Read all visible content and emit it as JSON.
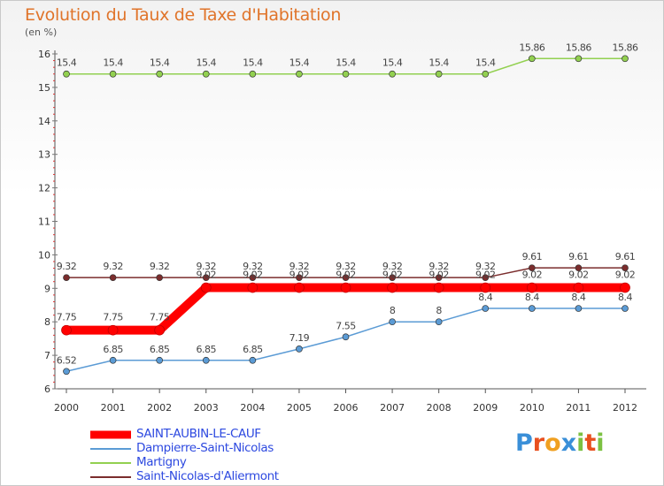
{
  "header": {
    "title": "Evolution du Taux de Taxe d'Habitation",
    "unit": "(en %)"
  },
  "brand": {
    "letters": [
      "P",
      "r",
      "o",
      "x",
      "i",
      "t",
      "i"
    ],
    "colors": [
      "#3a8fd8",
      "#e8501f",
      "#f0a020",
      "#3a8fd8",
      "#7cc142",
      "#e8501f",
      "#7cc142"
    ]
  },
  "chart_data": {
    "type": "line",
    "title": "Evolution du Taux de Taxe d'Habitation",
    "ylabel": "(en %)",
    "xlabel": "",
    "ylim": [
      6,
      16
    ],
    "yticks": [
      "6",
      "7",
      "8",
      "9",
      "10",
      "11",
      "12",
      "13",
      "14",
      "15",
      "16"
    ],
    "categories": [
      "2000",
      "2001",
      "2002",
      "2003",
      "2004",
      "2005",
      "2006",
      "2007",
      "2008",
      "2009",
      "2010",
      "2011",
      "2012"
    ],
    "series": [
      {
        "name": "SAINT-AUBIN-LE-CAUF",
        "color": "#ff0000",
        "values": [
          7.75,
          7.75,
          7.75,
          9.02,
          9.02,
          9.02,
          9.02,
          9.02,
          9.02,
          9.02,
          9.02,
          9.02,
          9.02
        ],
        "labels": [
          "7.75",
          "7.75",
          "7.75",
          "9.02",
          "9.02",
          "9.02",
          "9.02",
          "9.02",
          "9.02",
          "9.02",
          "9.02",
          "9.02",
          "9.02"
        ]
      },
      {
        "name": "Dampierre-Saint-Nicolas",
        "color": "#5b9bd5",
        "values": [
          6.52,
          6.85,
          6.85,
          6.85,
          6.85,
          7.19,
          7.55,
          8,
          8,
          8.4,
          8.4,
          8.4,
          8.4
        ],
        "labels": [
          "6.52",
          "6.85",
          "6.85",
          "6.85",
          "6.85",
          "7.19",
          "7.55",
          "8",
          "8",
          "8.4",
          "8.4",
          "8.4",
          "8.4"
        ]
      },
      {
        "name": "Martigny",
        "color": "#92d050",
        "values": [
          15.4,
          15.4,
          15.4,
          15.4,
          15.4,
          15.4,
          15.4,
          15.4,
          15.4,
          15.4,
          15.86,
          15.86,
          15.86
        ],
        "labels": [
          "15.4",
          "15.4",
          "15.4",
          "15.4",
          "15.4",
          "15.4",
          "15.4",
          "15.4",
          "15.4",
          "15.4",
          "15.86",
          "15.86",
          "15.86"
        ]
      },
      {
        "name": "Saint-Nicolas-d'Aliermont",
        "color": "#7b2d2d",
        "values": [
          9.32,
          9.32,
          9.32,
          9.32,
          9.32,
          9.32,
          9.32,
          9.32,
          9.32,
          9.32,
          9.61,
          9.61,
          9.61
        ],
        "labels": [
          "9.32",
          "9.32",
          "9.32",
          "9.32",
          "9.32",
          "9.32",
          "9.32",
          "9.32",
          "9.32",
          "9.32",
          "9.61",
          "9.61",
          "9.61"
        ]
      }
    ],
    "legend_position": "bottom-left",
    "grid": false
  }
}
